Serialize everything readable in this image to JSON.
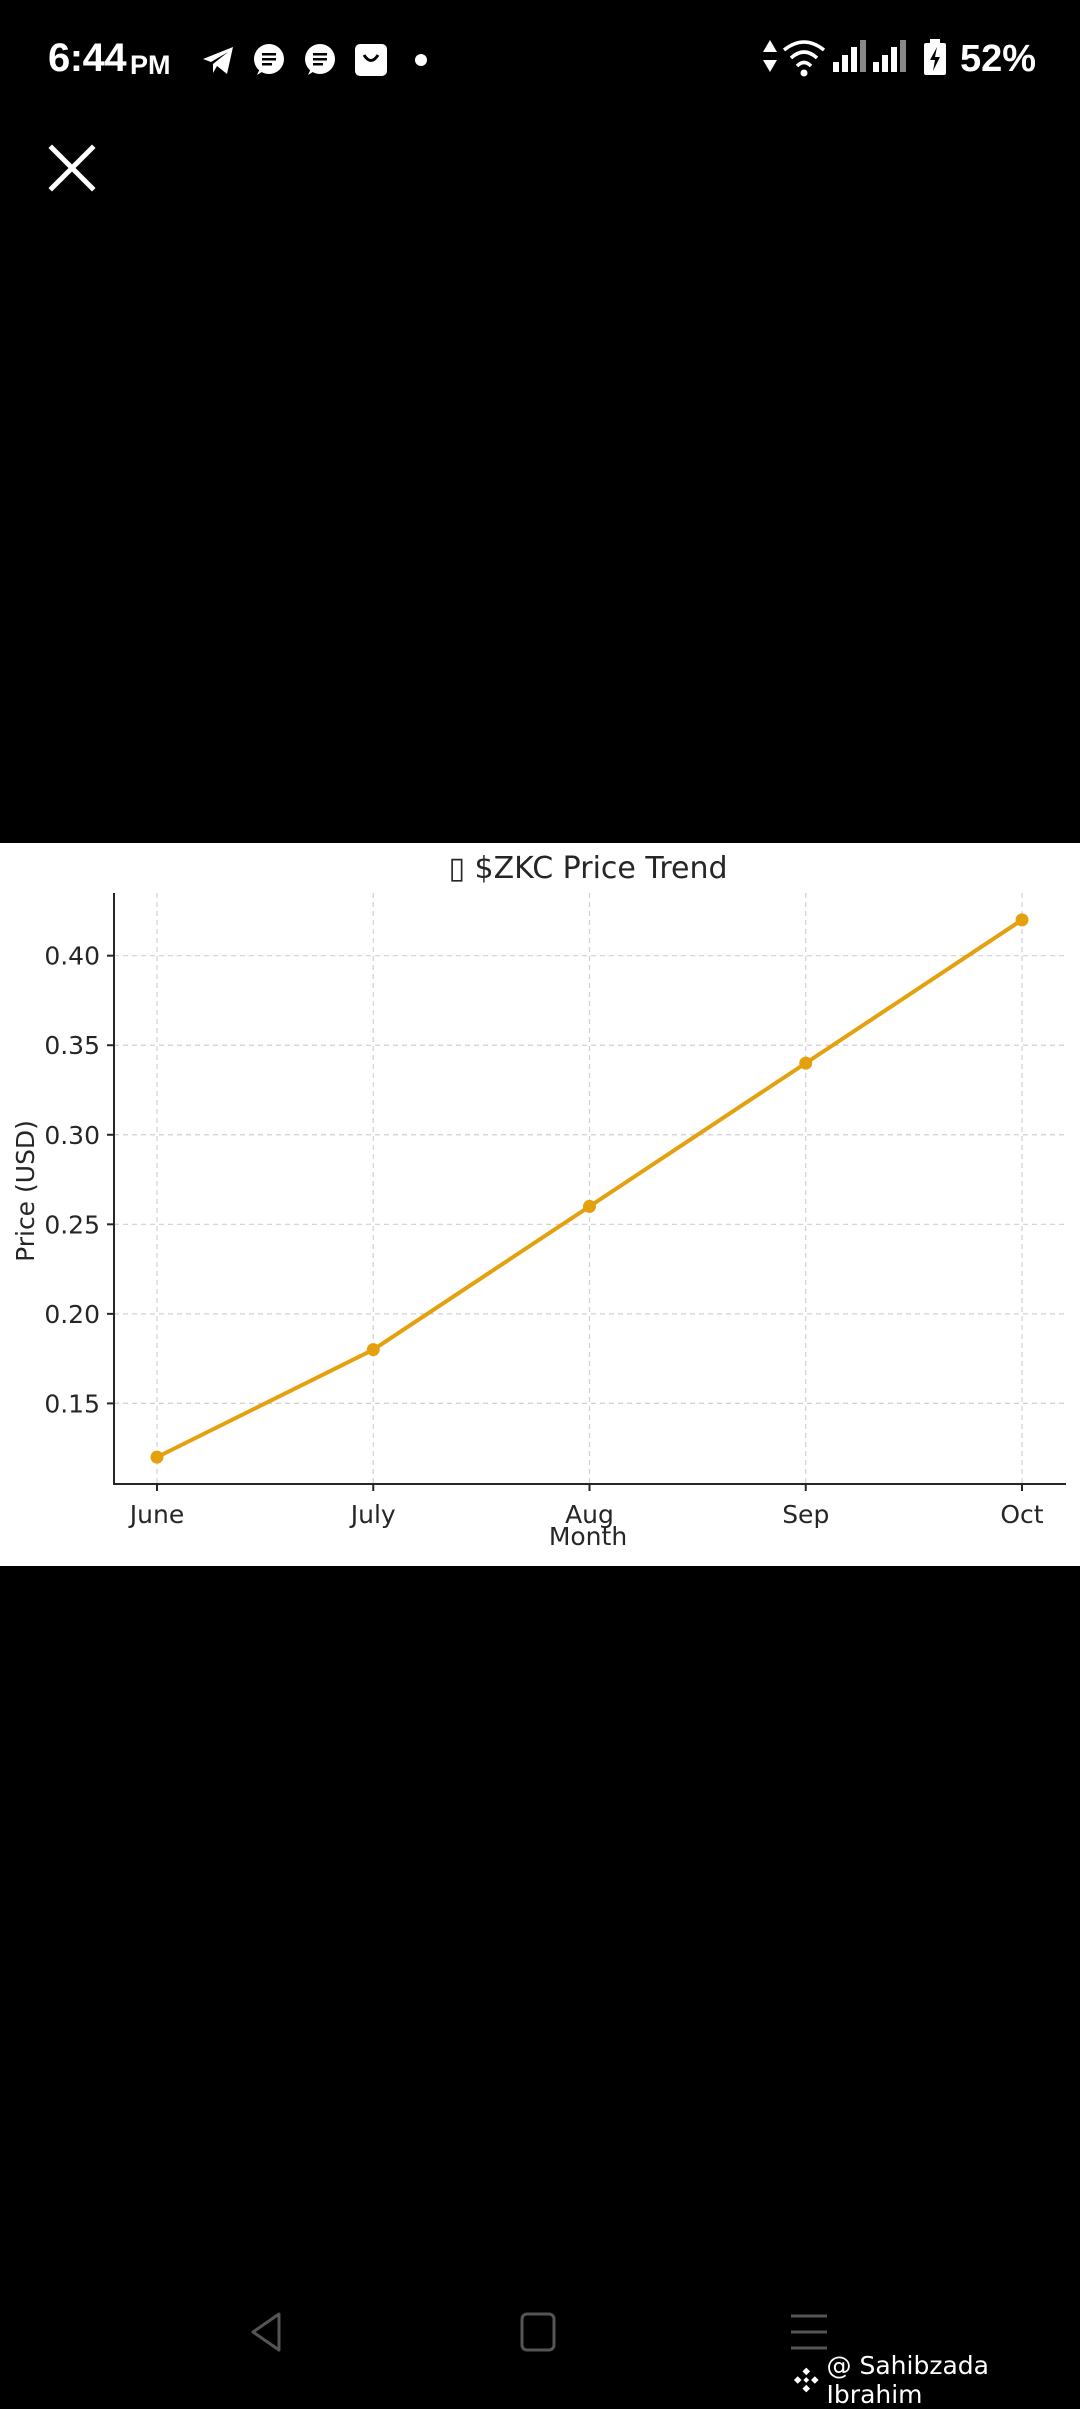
{
  "status_bar": {
    "time": "6:44",
    "ampm": "PM",
    "battery": "52%",
    "notification_icons": [
      "telegram-icon",
      "message-icon",
      "message-icon",
      "shop-icon"
    ]
  },
  "colors": {
    "line": "#E5A00D",
    "grid": "#d0d0d0",
    "background": "#000000",
    "panel": "#ffffff"
  },
  "chart_data": {
    "type": "line",
    "title": "▯ $ZKC Price Trend",
    "xlabel": "Month",
    "ylabel": "Price (USD)",
    "categories": [
      "June",
      "July",
      "Aug",
      "Sep",
      "Oct"
    ],
    "values": [
      0.12,
      0.18,
      0.26,
      0.34,
      0.42
    ],
    "y_ticks": [
      "0.15",
      "0.20",
      "0.25",
      "0.30",
      "0.35",
      "0.40"
    ],
    "ylim": [
      0.105,
      0.435
    ],
    "grid": true,
    "grid_style": "dashed",
    "marker": "circle"
  },
  "watermark": {
    "text": "@ Sahibzada Ibrahim"
  }
}
